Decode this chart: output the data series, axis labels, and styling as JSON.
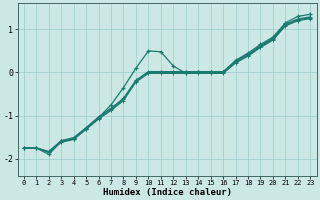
{
  "xlabel": "Humidex (Indice chaleur)",
  "bg_color": "#cce8e4",
  "line_color": "#1a7a6e",
  "grid_color": "#99cccc",
  "xlim": [
    -0.5,
    23.5
  ],
  "ylim": [
    -2.4,
    1.6
  ],
  "yticks": [
    -2,
    -1,
    0,
    1
  ],
  "xticks": [
    0,
    1,
    2,
    3,
    4,
    5,
    6,
    7,
    8,
    9,
    10,
    11,
    12,
    13,
    14,
    15,
    16,
    17,
    18,
    19,
    20,
    21,
    22,
    23
  ],
  "curved_x": [
    0,
    1,
    2,
    3,
    4,
    5,
    6,
    7,
    8,
    9,
    10,
    11,
    12,
    13,
    14,
    15,
    16,
    17,
    18,
    19,
    20,
    21,
    22,
    23
  ],
  "curved_y": [
    -1.75,
    -1.75,
    -1.9,
    -1.6,
    -1.55,
    -1.3,
    -1.05,
    -0.75,
    -0.35,
    0.1,
    0.5,
    0.48,
    0.15,
    -0.02,
    0.0,
    0.0,
    0.0,
    0.28,
    0.45,
    0.65,
    0.82,
    1.15,
    1.3,
    1.35
  ],
  "straight1_x": [
    0,
    1,
    2,
    3,
    4,
    5,
    6,
    7,
    8,
    9,
    10,
    11,
    12,
    13,
    14,
    15,
    16,
    17,
    18,
    19,
    20,
    21,
    22,
    23
  ],
  "straight1_y": [
    -1.75,
    -1.75,
    -1.85,
    -1.62,
    -1.55,
    -1.32,
    -1.08,
    -0.88,
    -0.65,
    -0.22,
    -0.02,
    -0.02,
    -0.02,
    -0.02,
    -0.02,
    -0.02,
    -0.02,
    0.22,
    0.38,
    0.58,
    0.75,
    1.08,
    1.2,
    1.25
  ],
  "straight2_x": [
    0,
    1,
    2,
    3,
    4,
    5,
    6,
    7,
    8,
    9,
    10,
    11,
    12,
    13,
    14,
    15,
    16,
    17,
    18,
    19,
    20,
    21,
    22,
    23
  ],
  "straight2_y": [
    -1.75,
    -1.75,
    -1.85,
    -1.6,
    -1.53,
    -1.3,
    -1.05,
    -0.85,
    -0.62,
    -0.2,
    0.0,
    0.0,
    0.0,
    0.0,
    0.0,
    0.0,
    0.0,
    0.25,
    0.4,
    0.6,
    0.77,
    1.1,
    1.22,
    1.27
  ],
  "straight3_x": [
    0,
    1,
    2,
    3,
    4,
    5,
    6,
    7,
    8,
    9,
    10,
    11,
    12,
    13,
    14,
    15,
    16,
    17,
    18,
    19,
    20,
    21,
    22,
    23
  ],
  "straight3_y": [
    -1.75,
    -1.75,
    -1.83,
    -1.58,
    -1.51,
    -1.28,
    -1.03,
    -0.83,
    -0.6,
    -0.18,
    0.02,
    0.02,
    0.02,
    0.02,
    0.02,
    0.02,
    0.02,
    0.27,
    0.42,
    0.62,
    0.79,
    1.12,
    1.24,
    1.29
  ]
}
